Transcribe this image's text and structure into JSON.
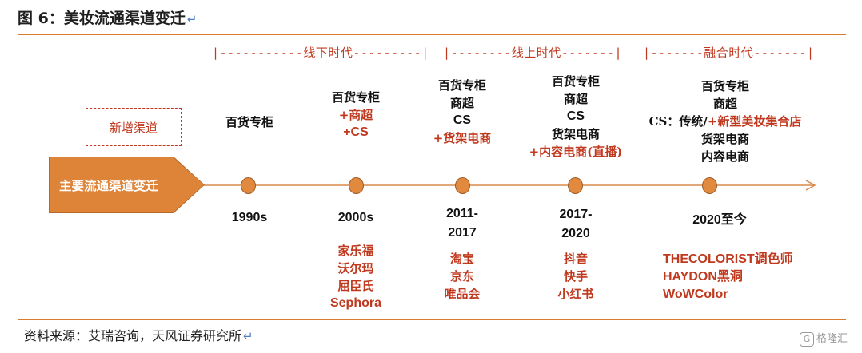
{
  "title": "图 6：美妆流通渠道变迁",
  "eras": [
    {
      "label": "|-----------线下时代---------|"
    },
    {
      "label": "|--------线上时代-------|"
    },
    {
      "label": "|-------融合时代-------|"
    }
  ],
  "legend": {
    "new_channel": "新增渠道"
  },
  "main_label": "主要流通渠道变迁",
  "colors": {
    "accent": "#de8439",
    "highlight": "#c0391f",
    "rule": "#d97b2c"
  },
  "periods": [
    {
      "channels": [
        {
          "text": "百货专柜",
          "new": false
        }
      ],
      "year": [
        "1990s"
      ],
      "brands": []
    },
    {
      "channels": [
        {
          "text": "百货专柜",
          "new": false
        },
        {
          "text": "+商超",
          "new": true
        },
        {
          "text": "+CS",
          "new": true
        }
      ],
      "year": [
        "2000s"
      ],
      "brands": [
        "家乐福",
        "沃尔玛",
        "屈臣氏",
        "Sephora"
      ]
    },
    {
      "channels": [
        {
          "text": "百货专柜",
          "new": false
        },
        {
          "text": "商超",
          "new": false
        },
        {
          "text": "CS",
          "new": false
        },
        {
          "text": "+货架电商",
          "new": true
        }
      ],
      "year": [
        "2011-",
        "2017"
      ],
      "brands": [
        "淘宝",
        "京东",
        "唯品会"
      ]
    },
    {
      "channels": [
        {
          "text": "百货专柜",
          "new": false
        },
        {
          "text": "商超",
          "new": false
        },
        {
          "text": "CS",
          "new": false
        },
        {
          "text": "货架电商",
          "new": false
        },
        {
          "text": "+内容电商(直播)",
          "new": true
        }
      ],
      "year": [
        "2017-",
        "2020"
      ],
      "brands": [
        "抖音",
        "快手",
        "小红书"
      ]
    },
    {
      "channels": [
        {
          "text": "百货专柜",
          "new": false
        },
        {
          "text": "商超",
          "new": false
        },
        {
          "text": "CS：传统/",
          "new": false,
          "suffix": "+新型美妆集合店"
        },
        {
          "text": "货架电商",
          "new": false
        },
        {
          "text": "内容电商",
          "new": false
        }
      ],
      "year": [
        "2020至今"
      ],
      "brands": [
        "THECOLORIST调色师",
        "HAYDON黑洞",
        "WoWColor"
      ]
    }
  ],
  "source": "资料来源：艾瑞咨询，天风证券研究所",
  "watermark": "格隆汇"
}
